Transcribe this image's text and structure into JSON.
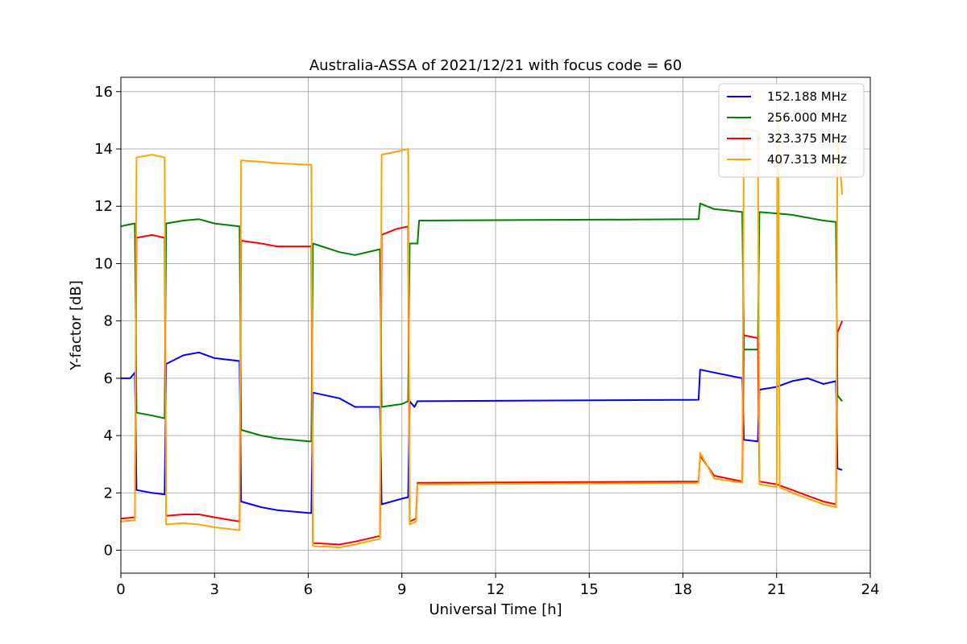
{
  "chart_data": {
    "type": "line",
    "title": "Australia-ASSA of 2021/12/21 with focus code = 60",
    "xlabel": "Universal Time [h]",
    "ylabel": "Y-factor [dB]",
    "xlim": [
      0,
      24
    ],
    "ylim": [
      -0.8,
      16.5
    ],
    "xticks": [
      0,
      3,
      6,
      9,
      12,
      15,
      18,
      21,
      24
    ],
    "yticks": [
      0,
      2,
      4,
      6,
      8,
      10,
      12,
      14,
      16
    ],
    "grid": true,
    "legend_position": "top-right",
    "series": [
      {
        "name": "152.188 MHz",
        "color": "#0000ff",
        "x": [
          0.0,
          0.3,
          0.45,
          0.5,
          1.0,
          1.4,
          1.45,
          2.0,
          2.5,
          3.0,
          3.8,
          3.85,
          4.5,
          5.0,
          6.0,
          6.1,
          6.15,
          7.0,
          7.5,
          8.3,
          8.35,
          9.0,
          9.2,
          9.25,
          9.4,
          9.5,
          18.5,
          18.55,
          19.0,
          19.9,
          19.95,
          20.4,
          20.45,
          21.0,
          21.5,
          22.0,
          22.5,
          22.9,
          22.95,
          23.1
        ],
        "y": [
          6.0,
          6.0,
          6.2,
          2.1,
          2.0,
          1.95,
          6.5,
          6.8,
          6.9,
          6.7,
          6.6,
          1.7,
          1.5,
          1.4,
          1.3,
          1.3,
          5.5,
          5.3,
          5.0,
          5.0,
          1.6,
          1.8,
          1.85,
          5.2,
          5.0,
          5.2,
          5.25,
          6.3,
          6.2,
          6.0,
          3.85,
          3.8,
          5.6,
          5.7,
          5.9,
          6.0,
          5.8,
          5.9,
          2.85,
          2.8
        ]
      },
      {
        "name": "256.000 MHz",
        "color": "#008000",
        "x": [
          0.0,
          0.2,
          0.45,
          0.5,
          1.0,
          1.4,
          1.45,
          2.0,
          2.5,
          3.0,
          3.8,
          3.85,
          4.5,
          5.0,
          6.0,
          6.1,
          6.15,
          7.0,
          7.5,
          8.3,
          8.35,
          9.0,
          9.2,
          9.25,
          9.5,
          9.55,
          18.5,
          18.55,
          19.0,
          19.5,
          19.9,
          19.95,
          20.4,
          20.45,
          21.0,
          21.5,
          22.0,
          22.5,
          22.9,
          22.95,
          23.1
        ],
        "y": [
          11.3,
          11.35,
          11.4,
          4.8,
          4.7,
          4.6,
          11.4,
          11.5,
          11.55,
          11.4,
          11.3,
          4.2,
          4.0,
          3.9,
          3.8,
          3.8,
          10.7,
          10.4,
          10.3,
          10.5,
          5.0,
          5.1,
          5.2,
          10.7,
          10.7,
          11.5,
          11.55,
          12.1,
          11.9,
          11.85,
          11.8,
          7.0,
          7.0,
          11.8,
          11.75,
          11.7,
          11.6,
          11.5,
          11.45,
          5.4,
          5.2
        ]
      },
      {
        "name": "323.375 MHz",
        "color": "#ff0000",
        "x": [
          0.0,
          0.45,
          0.5,
          1.0,
          1.4,
          1.45,
          2.0,
          2.5,
          3.0,
          3.8,
          3.85,
          4.5,
          5.0,
          6.0,
          6.1,
          6.15,
          7.0,
          7.5,
          8.3,
          8.35,
          8.8,
          9.2,
          9.25,
          9.45,
          9.5,
          18.5,
          18.55,
          19.0,
          19.9,
          19.95,
          20.4,
          20.45,
          21.0,
          21.5,
          22.0,
          22.5,
          22.9,
          22.95,
          23.1
        ],
        "y": [
          1.1,
          1.15,
          10.9,
          11.0,
          10.9,
          1.2,
          1.25,
          1.25,
          1.15,
          1.0,
          10.8,
          10.7,
          10.6,
          10.6,
          10.6,
          0.25,
          0.2,
          0.3,
          0.5,
          11.0,
          11.2,
          11.3,
          1.0,
          1.1,
          2.35,
          2.4,
          3.3,
          2.6,
          2.4,
          7.5,
          7.4,
          2.4,
          2.3,
          2.1,
          1.9,
          1.7,
          1.6,
          7.6,
          8.0
        ]
      },
      {
        "name": "407.313 MHz",
        "color": "#ffa500",
        "x": [
          0.0,
          0.45,
          0.5,
          1.0,
          1.4,
          1.45,
          2.0,
          2.5,
          3.0,
          3.8,
          3.85,
          4.5,
          5.0,
          6.0,
          6.1,
          6.15,
          7.0,
          7.5,
          8.3,
          8.35,
          8.8,
          9.2,
          9.25,
          9.45,
          9.5,
          18.5,
          18.55,
          19.0,
          19.9,
          19.95,
          20.4,
          20.45,
          21.0,
          21.05,
          21.1,
          21.5,
          22.0,
          22.5,
          22.9,
          22.95,
          23.1
        ],
        "y": [
          1.0,
          1.05,
          13.7,
          13.8,
          13.7,
          0.9,
          0.95,
          0.9,
          0.8,
          0.7,
          13.6,
          13.55,
          13.5,
          13.45,
          13.45,
          0.15,
          0.1,
          0.2,
          0.4,
          13.8,
          13.9,
          14.0,
          0.9,
          1.0,
          2.3,
          2.35,
          3.4,
          2.5,
          2.35,
          14.7,
          14.6,
          2.3,
          2.2,
          15.2,
          2.2,
          2.0,
          1.8,
          1.6,
          1.5,
          14.5,
          12.4
        ]
      }
    ]
  }
}
